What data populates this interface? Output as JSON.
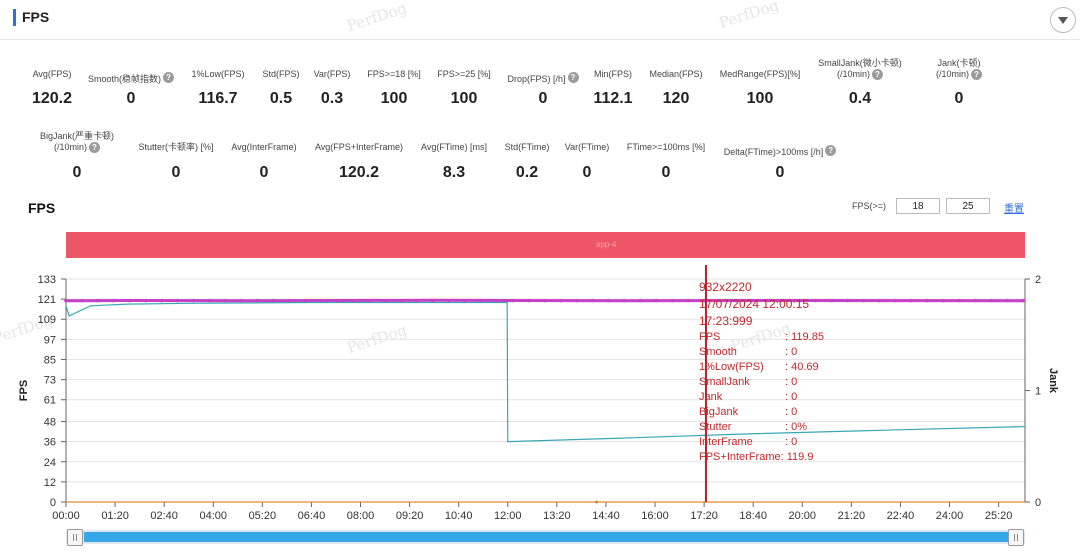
{
  "header": {
    "title": "FPS"
  },
  "watermark": "PerfDog",
  "metrics_row1": [
    {
      "label": "Avg(FPS)",
      "value": "120.2",
      "help": false
    },
    {
      "label": "Smooth(稳帧指数)",
      "value": "0",
      "help": true
    },
    {
      "label": "1%Low(FPS)",
      "value": "116.7",
      "help": false
    },
    {
      "label": "Std(FPS)",
      "value": "0.5",
      "help": false
    },
    {
      "label": "Var(FPS)",
      "value": "0.3",
      "help": false
    },
    {
      "label": "FPS>=18 [%]",
      "value": "100",
      "help": false
    },
    {
      "label": "FPS>=25 [%]",
      "value": "100",
      "help": false
    },
    {
      "label": "Drop(FPS) [/h]",
      "value": "0",
      "help": true
    },
    {
      "label": "Min(FPS)",
      "value": "112.1",
      "help": false
    },
    {
      "label": "Median(FPS)",
      "value": "120",
      "help": false
    },
    {
      "label": "MedRange(FPS)[%]",
      "value": "100",
      "help": false
    },
    {
      "label": "SmallJank(微小卡顿)",
      "label2": "(/10min)",
      "value": "0.4",
      "help": true
    },
    {
      "label": "Jank(卡顿)",
      "label2": "(/10min)",
      "value": "0",
      "help": true
    }
  ],
  "metrics_row2": [
    {
      "label": "BigJank(严重卡顿)",
      "label2": "(/10min)",
      "value": "0",
      "help": true
    },
    {
      "label": "Stutter(卡顿率) [%]",
      "value": "0",
      "help": false
    },
    {
      "label": "Avg(InterFrame)",
      "value": "0",
      "help": false
    },
    {
      "label": "Avg(FPS+InterFrame)",
      "value": "120.2",
      "help": false
    },
    {
      "label": "Avg(FTime) [ms]",
      "value": "8.3",
      "help": false
    },
    {
      "label": "Std(FTime)",
      "value": "0.2",
      "help": false
    },
    {
      "label": "Var(FTime)",
      "value": "0",
      "help": false
    },
    {
      "label": "FTime>=100ms [%]",
      "value": "0",
      "help": false
    },
    {
      "label": "Delta(FTime)>100ms [/h]",
      "value": "0",
      "help": true
    }
  ],
  "chart_section": {
    "title": "FPS",
    "threshold_label": "FPS(>=)",
    "threshold_low": "18",
    "threshold_high": "25",
    "reset_label": "重置",
    "band_label": "app-4"
  },
  "tooltip": {
    "resolution": "932x2220",
    "datetime": "17/07/2024 12:00:15",
    "elapsed": "17:23:999",
    "rows": [
      {
        "key": "FPS",
        "value": ": 119.85"
      },
      {
        "key": "Smooth",
        "value": ": 0"
      },
      {
        "key": "1%Low(FPS)",
        "value": ": 40.69"
      },
      {
        "key": "SmallJank",
        "value": ": 0"
      },
      {
        "key": "Jank",
        "value": ": 0"
      },
      {
        "key": "BigJank",
        "value": ": 0"
      },
      {
        "key": "Stutter",
        "value": ": 0%"
      },
      {
        "key": "InterFrame",
        "value": ": 0"
      }
    ],
    "last_row": "FPS+InterFrame: 119.9"
  },
  "chart_data": {
    "type": "line",
    "xlabel": "",
    "ylabel": "FPS",
    "y2label": "Jank",
    "x_ticks": [
      "00:00",
      "01:20",
      "02:40",
      "04:00",
      "05:20",
      "06:40",
      "08:00",
      "09:20",
      "10:40",
      "12:00",
      "13:20",
      "14:40",
      "16:00",
      "17:20",
      "18:40",
      "20:00",
      "21:20",
      "22:40",
      "24:00",
      "25:20"
    ],
    "y_ticks": [
      0,
      12,
      24,
      36,
      48,
      61,
      73,
      85,
      97,
      109,
      121,
      133
    ],
    "y2_ticks": [
      0,
      1,
      2
    ],
    "ylim": [
      0,
      133
    ],
    "y2lim": [
      0,
      2
    ],
    "x_range_minutes": [
      0,
      1563
    ],
    "cursor_minutes": 1043,
    "colors": {
      "fps": "#c63fc6",
      "low": "#3aa7b6",
      "smooth": "#e38a2c",
      "cursor": "#b0222a"
    },
    "series": [
      {
        "name": "FPS",
        "x": [
          0,
          20,
          100,
          300,
          600,
          900,
          1200,
          1563
        ],
        "values": [
          120,
          120,
          120.2,
          120,
          120.3,
          120,
          120.2,
          120
        ]
      },
      {
        "name": "1%Low(FPS)",
        "x": [
          0,
          5,
          40,
          100,
          200,
          400,
          600,
          719,
          720,
          900,
          1100,
          1300,
          1563
        ],
        "values": [
          117,
          111,
          117,
          118,
          118.5,
          119,
          119,
          119,
          36,
          38,
          40.5,
          42.5,
          45
        ]
      },
      {
        "name": "Smooth",
        "x": [
          0,
          1563
        ],
        "values": [
          0,
          0
        ]
      }
    ],
    "jank_points": [
      {
        "x": 865,
        "y": 0
      }
    ]
  }
}
